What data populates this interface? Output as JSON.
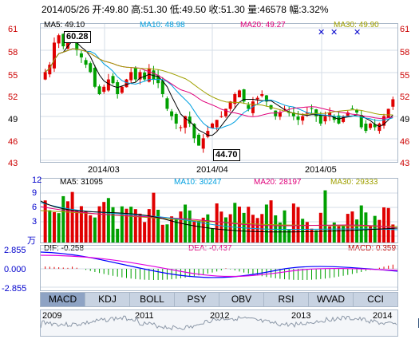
{
  "info": {
    "text": "2014/05/26 开:49.80  高:51.30  低:49.50  收:51.30  量:46578  幅:3.32%"
  },
  "main": {
    "ma5": "MA5: 49.10",
    "ma10": "MA10: 48.98",
    "ma20": "MA20: 49.27",
    "ma30": "MA30: 49.90",
    "ma_colors": {
      "ma5": "#000000",
      "ma10": "#00a0e0",
      "ma20": "#e0007a",
      "ma30": "#a0a000"
    },
    "y_labels": [
      "61",
      "58",
      "55",
      "52",
      "49",
      "46",
      "43"
    ],
    "high_label": "60.28",
    "low_label": "44.70",
    "dates": [
      "2014/03",
      "2014/04",
      "2014/05"
    ]
  },
  "volume": {
    "ma5": "MA5: 31095",
    "ma10": "MA10: 30247",
    "ma20": "MA20: 28197",
    "ma30": "MA30: 29333",
    "y_labels": [
      "12",
      "9",
      "6",
      "3"
    ],
    "unit": "万"
  },
  "macd": {
    "dif": "DIF: -0.258",
    "dea": "DEA: -0.437",
    "macd": "MACD: 0.359",
    "y_labels": [
      "2.855",
      "0.000",
      "-2.855"
    ]
  },
  "tabs": [
    "MACD",
    "KDJ",
    "BOLL",
    "PSY",
    "OBV",
    "RSI",
    "WVAD",
    "CCI"
  ],
  "navigator": {
    "years": [
      "2009",
      "2011",
      "2012",
      "2013",
      "2014"
    ]
  },
  "colors": {
    "up": "#e00000",
    "down": "#00a000",
    "grid": "#d6dde7"
  }
}
